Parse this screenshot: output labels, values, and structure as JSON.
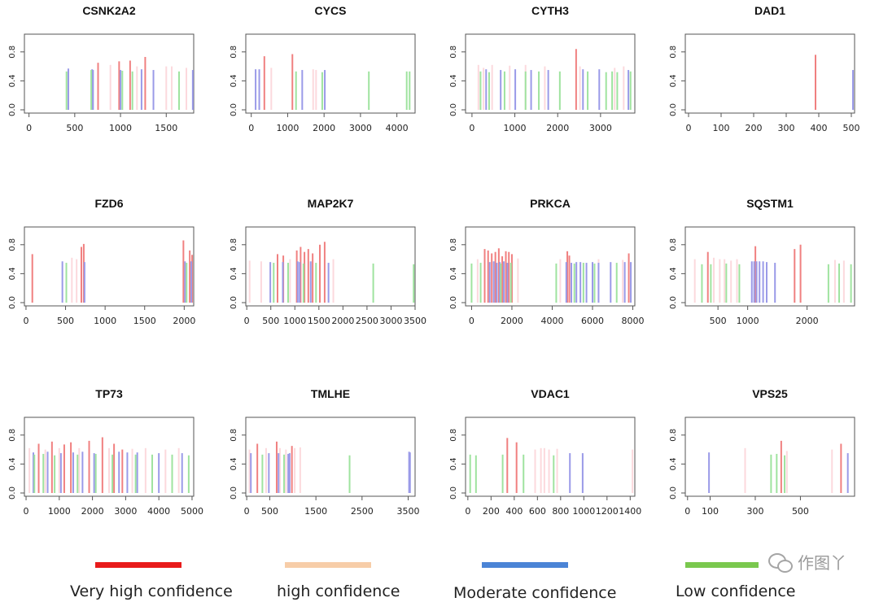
{
  "colors": {
    "very_high": "#f08080",
    "high": "#fcd9dd",
    "moderate": "#9a9ae8",
    "low": "#9fe39f"
  },
  "y_ticks": [
    "0.0",
    "0.4",
    "0.8"
  ],
  "chart_data": [
    {
      "type": "bar",
      "title": "CSNK2A2",
      "xlim": [
        -50,
        1800
      ],
      "ylim": [
        0,
        1
      ],
      "xticks": [
        0,
        500,
        1000,
        1500
      ],
      "series": [
        {
          "level": "very_high",
          "x": [
            755,
            985,
            1105,
            1270
          ],
          "values": [
            0.65,
            0.67,
            0.68,
            0.73
          ]
        },
        {
          "level": "high",
          "x": [
            890,
            1180,
            1500,
            1560,
            1720
          ],
          "values": [
            0.62,
            0.6,
            0.6,
            0.6,
            0.58
          ]
        },
        {
          "level": "moderate",
          "x": [
            430,
            690,
            700,
            1000,
            1230,
            1360,
            1790
          ],
          "values": [
            0.57,
            0.56,
            0.55,
            0.55,
            0.56,
            0.55,
            0.55
          ]
        },
        {
          "level": "low",
          "x": [
            410,
            680,
            1020,
            1130,
            1640
          ],
          "values": [
            0.53,
            0.55,
            0.54,
            0.53,
            0.53
          ]
        }
      ]
    },
    {
      "type": "bar",
      "title": "CYCS",
      "xlim": [
        -150,
        4500
      ],
      "ylim": [
        0,
        1
      ],
      "xticks": [
        0,
        1000,
        2000,
        3000,
        4000
      ],
      "series": [
        {
          "level": "very_high",
          "x": [
            360,
            1130
          ],
          "values": [
            0.74,
            0.77
          ]
        },
        {
          "level": "high",
          "x": [
            550,
            1700,
            1780
          ],
          "values": [
            0.58,
            0.56,
            0.55
          ]
        },
        {
          "level": "moderate",
          "x": [
            120,
            220,
            1400,
            2020
          ],
          "values": [
            0.56,
            0.56,
            0.55,
            0.55
          ]
        },
        {
          "level": "low",
          "x": [
            1230,
            1950,
            3230,
            4270,
            4350
          ],
          "values": [
            0.53,
            0.52,
            0.53,
            0.53,
            0.53
          ]
        }
      ]
    },
    {
      "type": "bar",
      "title": "CYTH3",
      "xlim": [
        -150,
        3800
      ],
      "ylim": [
        0,
        1
      ],
      "xticks": [
        0,
        1000,
        2000,
        3000
      ],
      "series": [
        {
          "level": "very_high",
          "x": [
            2430
          ],
          "values": [
            0.84
          ]
        },
        {
          "level": "high",
          "x": [
            150,
            270,
            470,
            880,
            1250,
            1700,
            2520,
            3330,
            3540
          ],
          "values": [
            0.62,
            0.58,
            0.62,
            0.61,
            0.62,
            0.6,
            0.6,
            0.58,
            0.6
          ]
        },
        {
          "level": "moderate",
          "x": [
            330,
            670,
            1010,
            1380,
            1780,
            2590,
            2970,
            3650
          ],
          "values": [
            0.56,
            0.55,
            0.56,
            0.55,
            0.55,
            0.56,
            0.56,
            0.55
          ]
        },
        {
          "level": "low",
          "x": [
            200,
            400,
            760,
            1250,
            1560,
            2050,
            2700,
            3130,
            3270,
            3390,
            3700
          ],
          "values": [
            0.53,
            0.52,
            0.53,
            0.53,
            0.53,
            0.53,
            0.53,
            0.52,
            0.53,
            0.52,
            0.53
          ]
        }
      ]
    },
    {
      "type": "bar",
      "title": "DAD1",
      "xlim": [
        -10,
        510
      ],
      "ylim": [
        0,
        1
      ],
      "xticks": [
        0,
        100,
        200,
        300,
        400,
        500
      ],
      "series": [
        {
          "level": "very_high",
          "x": [
            390
          ],
          "values": [
            0.76
          ]
        },
        {
          "level": "moderate",
          "x": [
            505
          ],
          "values": [
            0.55
          ]
        }
      ]
    },
    {
      "type": "bar",
      "title": "FZD6",
      "xlim": [
        -20,
        2120
      ],
      "ylim": [
        0,
        1
      ],
      "xticks": [
        0,
        500,
        1000,
        1500,
        2000
      ],
      "series": [
        {
          "level": "very_high",
          "x": [
            80,
            700,
            730,
            1990,
            2070,
            2100
          ],
          "values": [
            0.67,
            0.77,
            0.81,
            0.86,
            0.72,
            0.66
          ]
        },
        {
          "level": "high",
          "x": [
            580,
            640
          ],
          "values": [
            0.62,
            0.6
          ]
        },
        {
          "level": "moderate",
          "x": [
            460,
            740,
            2010,
            2090
          ],
          "values": [
            0.57,
            0.56,
            0.57,
            0.57
          ]
        },
        {
          "level": "low",
          "x": [
            510,
            2030
          ],
          "values": [
            0.55,
            0.55
          ]
        }
      ]
    },
    {
      "type": "bar",
      "title": "MAP2K7",
      "xlim": [
        -20,
        3500
      ],
      "ylim": [
        0,
        1
      ],
      "xticks": [
        0,
        500,
        1000,
        1500,
        2000,
        2500,
        3000,
        3500
      ],
      "series": [
        {
          "level": "very_high",
          "x": [
            640,
            760,
            1040,
            1120,
            1200,
            1280,
            1370,
            1520,
            1620
          ],
          "values": [
            0.67,
            0.65,
            0.72,
            0.77,
            0.7,
            0.74,
            0.68,
            0.8,
            0.84
          ]
        },
        {
          "level": "high",
          "x": [
            60,
            300,
            900,
            1800
          ],
          "values": [
            0.58,
            0.57,
            0.6,
            0.6
          ]
        },
        {
          "level": "moderate",
          "x": [
            490,
            750,
            1060,
            1100,
            1330,
            1700
          ],
          "values": [
            0.56,
            0.56,
            0.57,
            0.56,
            0.57,
            0.55
          ]
        },
        {
          "level": "low",
          "x": [
            560,
            860,
            1180,
            1440,
            2630,
            3470
          ],
          "values": [
            0.55,
            0.55,
            0.54,
            0.55,
            0.54,
            0.53
          ]
        }
      ]
    },
    {
      "type": "bar",
      "title": "PRKCA",
      "xlim": [
        -300,
        8100
      ],
      "ylim": [
        0,
        1
      ],
      "xticks": [
        0,
        2000,
        4000,
        6000,
        8000
      ],
      "series": [
        {
          "level": "very_high",
          "x": [
            650,
            820,
            1000,
            1180,
            1350,
            1520,
            1700,
            1850,
            2000,
            4750,
            4850,
            7800
          ],
          "values": [
            0.74,
            0.72,
            0.68,
            0.7,
            0.75,
            0.64,
            0.71,
            0.7,
            0.67,
            0.71,
            0.65,
            0.68
          ]
        },
        {
          "level": "high",
          "x": [
            300,
            2300,
            4400,
            6300,
            7500
          ],
          "values": [
            0.6,
            0.61,
            0.6,
            0.6,
            0.59
          ]
        },
        {
          "level": "moderate",
          "x": [
            900,
            1100,
            1250,
            1400,
            1600,
            1780,
            4700,
            4950,
            5200,
            5400,
            5700,
            6000,
            6300,
            6900,
            7600,
            7900
          ],
          "values": [
            0.56,
            0.57,
            0.55,
            0.56,
            0.57,
            0.55,
            0.56,
            0.55,
            0.56,
            0.56,
            0.55,
            0.56,
            0.55,
            0.56,
            0.56,
            0.56
          ]
        },
        {
          "level": "low",
          "x": [
            0,
            450,
            1450,
            1950,
            4200,
            5100,
            5550,
            6100,
            7200
          ],
          "values": [
            0.54,
            0.55,
            0.54,
            0.55,
            0.54,
            0.54,
            0.55,
            0.54,
            0.55
          ]
        }
      ]
    },
    {
      "type": "bar",
      "title": "SQSTM1",
      "xlim": [
        -50,
        2800
      ],
      "ylim": [
        0,
        1
      ],
      "xticks": [
        500,
        1000,
        2000
      ],
      "series": [
        {
          "level": "very_high",
          "x": [
            330,
            1130,
            1790,
            1890
          ],
          "values": [
            0.7,
            0.78,
            0.74,
            0.8
          ]
        },
        {
          "level": "high",
          "x": [
            110,
            430,
            530,
            610,
            720,
            820,
            2470,
            2620
          ],
          "values": [
            0.6,
            0.62,
            0.6,
            0.6,
            0.58,
            0.6,
            0.59,
            0.58
          ]
        },
        {
          "level": "moderate",
          "x": [
            1070,
            1110,
            1150,
            1200,
            1260,
            1320,
            1460
          ],
          "values": [
            0.57,
            0.57,
            0.57,
            0.57,
            0.57,
            0.56,
            0.55
          ]
        },
        {
          "level": "low",
          "x": [
            230,
            380,
            640,
            860,
            2360,
            2540,
            2740
          ],
          "values": [
            0.53,
            0.53,
            0.54,
            0.53,
            0.53,
            0.54,
            0.53
          ]
        }
      ]
    },
    {
      "type": "bar",
      "title": "TP73",
      "xlim": [
        -50,
        5050
      ],
      "ylim": [
        0,
        1
      ],
      "xticks": [
        0,
        1000,
        2000,
        3000,
        4000,
        5000
      ],
      "series": [
        {
          "level": "very_high",
          "x": [
            380,
            780,
            1150,
            1350,
            1900,
            2300,
            2650,
            2900
          ],
          "values": [
            0.68,
            0.71,
            0.67,
            0.7,
            0.72,
            0.77,
            0.68,
            0.6
          ]
        },
        {
          "level": "high",
          "x": [
            100,
            580,
            1000,
            1600,
            2500,
            3200,
            3600,
            4200,
            4600
          ],
          "values": [
            0.62,
            0.6,
            0.62,
            0.62,
            0.62,
            0.61,
            0.62,
            0.6,
            0.62
          ]
        },
        {
          "level": "moderate",
          "x": [
            220,
            650,
            1050,
            1420,
            1700,
            2050,
            2800,
            3050,
            3350,
            4000,
            4700
          ],
          "values": [
            0.56,
            0.57,
            0.55,
            0.56,
            0.57,
            0.55,
            0.57,
            0.56,
            0.56,
            0.55,
            0.55
          ]
        },
        {
          "level": "low",
          "x": [
            250,
            520,
            860,
            1550,
            2100,
            2600,
            3300,
            3800,
            4400,
            4900
          ],
          "values": [
            0.53,
            0.54,
            0.52,
            0.53,
            0.54,
            0.53,
            0.53,
            0.53,
            0.53,
            0.52
          ]
        }
      ]
    },
    {
      "type": "bar",
      "title": "TMLHE",
      "xlim": [
        -20,
        3650
      ],
      "ylim": [
        0,
        1
      ],
      "xticks": [
        0,
        500,
        1500,
        2500,
        3500
      ],
      "series": [
        {
          "level": "very_high",
          "x": [
            230,
            650,
            980
          ],
          "values": [
            0.68,
            0.71,
            0.65
          ]
        },
        {
          "level": "high",
          "x": [
            60,
            420,
            720,
            850,
            1040,
            1160
          ],
          "values": [
            0.6,
            0.62,
            0.62,
            0.6,
            0.62,
            0.63
          ]
        },
        {
          "level": "moderate",
          "x": [
            90,
            480,
            690,
            900,
            930,
            3520,
            3540
          ],
          "values": [
            0.55,
            0.55,
            0.55,
            0.54,
            0.55,
            0.57,
            0.56
          ]
        },
        {
          "level": "low",
          "x": [
            340,
            810,
            2230
          ],
          "values": [
            0.53,
            0.53,
            0.52
          ]
        }
      ]
    },
    {
      "type": "bar",
      "title": "VDAC1",
      "xlim": [
        -20,
        1440
      ],
      "ylim": [
        0,
        1
      ],
      "xticks": [
        0,
        200,
        400,
        600,
        800,
        1000,
        1200,
        1400
      ],
      "series": [
        {
          "level": "very_high",
          "x": [
            340,
            420
          ],
          "values": [
            0.76,
            0.7
          ]
        },
        {
          "level": "high",
          "x": [
            580,
            630,
            660,
            700,
            770,
            1420
          ],
          "values": [
            0.6,
            0.62,
            0.62,
            0.6,
            0.61,
            0.6
          ]
        },
        {
          "level": "moderate",
          "x": [
            880,
            990
          ],
          "values": [
            0.55,
            0.55
          ]
        },
        {
          "level": "low",
          "x": [
            20,
            70,
            300,
            480,
            740
          ],
          "values": [
            0.53,
            0.52,
            0.53,
            0.53,
            0.52
          ]
        }
      ]
    },
    {
      "type": "bar",
      "title": "VPS25",
      "xlim": [
        -10,
        740
      ],
      "ylim": [
        0,
        1
      ],
      "xticks": [
        0,
        100,
        300,
        500
      ],
      "series": [
        {
          "level": "very_high",
          "x": [
            415,
            680
          ],
          "values": [
            0.72,
            0.68
          ]
        },
        {
          "level": "high",
          "x": [
            255,
            440,
            640
          ],
          "values": [
            0.62,
            0.58,
            0.6
          ]
        },
        {
          "level": "moderate",
          "x": [
            95,
            710
          ],
          "values": [
            0.56,
            0.55
          ]
        },
        {
          "level": "low",
          "x": [
            370,
            395,
            430
          ],
          "values": [
            0.53,
            0.54,
            0.52
          ]
        }
      ]
    }
  ],
  "legend": [
    {
      "level": "very_high",
      "label": "Very high confidence",
      "swatch": "#e81b1b"
    },
    {
      "level": "high",
      "label": "high confidence",
      "swatch": "#f7cda8"
    },
    {
      "level": "moderate",
      "label": "Moderate confidence",
      "swatch": "#4b84d6"
    },
    {
      "level": "low",
      "label": "Low confidence",
      "swatch": "#7ac84e"
    }
  ],
  "watermark": {
    "text": "作图丫",
    "icon": "wechat-icon"
  }
}
